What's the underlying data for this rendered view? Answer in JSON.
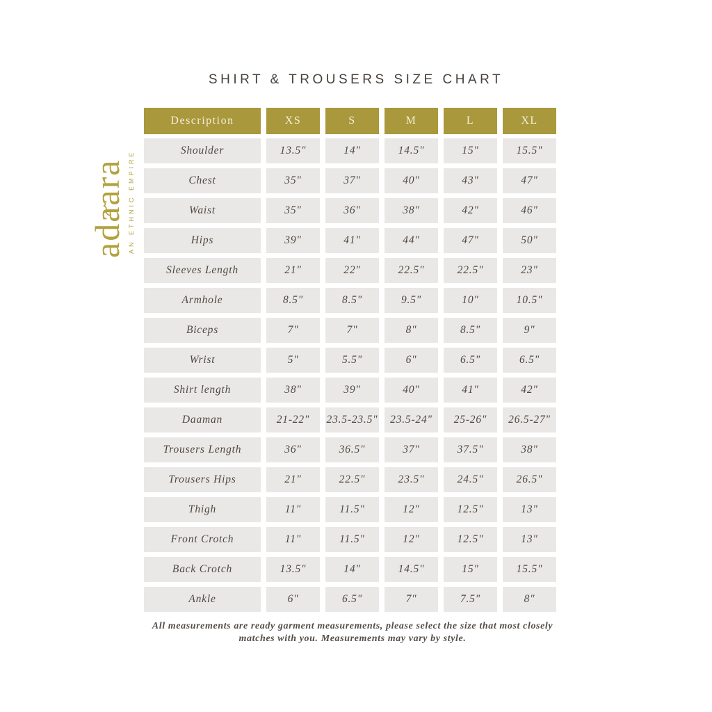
{
  "page": {
    "title": "SHIRT & TROUSERS SIZE CHART"
  },
  "logo": {
    "brand": "adaara",
    "tagline": "AN ETHNIC EMPIRE"
  },
  "table": {
    "columns": [
      "Description",
      "XS",
      "S",
      "M",
      "L",
      "XL"
    ],
    "rows": [
      {
        "label": "Shoulder",
        "values": [
          "13.5\"",
          "14\"",
          "14.5\"",
          "15\"",
          "15.5\""
        ]
      },
      {
        "label": "Chest",
        "values": [
          "35\"",
          "37\"",
          "40\"",
          "43\"",
          "47\""
        ]
      },
      {
        "label": "Waist",
        "values": [
          "35\"",
          "36\"",
          "38\"",
          "42\"",
          "46\""
        ]
      },
      {
        "label": "Hips",
        "values": [
          "39\"",
          "41\"",
          "44\"",
          "47\"",
          "50\""
        ]
      },
      {
        "label": "Sleeves Length",
        "values": [
          "21\"",
          "22\"",
          "22.5\"",
          "22.5\"",
          "23\""
        ]
      },
      {
        "label": "Armhole",
        "values": [
          "8.5\"",
          "8.5\"",
          "9.5\"",
          "10\"",
          "10.5\""
        ]
      },
      {
        "label": "Biceps",
        "values": [
          "7\"",
          "7\"",
          "8\"",
          "8.5\"",
          "9\""
        ]
      },
      {
        "label": "Wrist",
        "values": [
          "5\"",
          "5.5\"",
          "6\"",
          "6.5\"",
          "6.5\""
        ]
      },
      {
        "label": "Shirt length",
        "values": [
          "38\"",
          "39\"",
          "40\"",
          "41\"",
          "42\""
        ]
      },
      {
        "label": "Daaman",
        "values": [
          "21-22\"",
          "23.5-23.5\"",
          "23.5-24\"",
          "25-26\"",
          "26.5-27\""
        ]
      },
      {
        "label": "Trousers Length",
        "values": [
          "36\"",
          "36.5\"",
          "37\"",
          "37.5\"",
          "38\""
        ]
      },
      {
        "label": "Trousers Hips",
        "values": [
          "21\"",
          "22.5\"",
          "23.5\"",
          "24.5\"",
          "26.5\""
        ]
      },
      {
        "label": "Thigh",
        "values": [
          "11\"",
          "11.5\"",
          "12\"",
          "12.5\"",
          "13\""
        ]
      },
      {
        "label": "Front Crotch",
        "values": [
          "11\"",
          "11.5\"",
          "12\"",
          "12.5\"",
          "13\""
        ]
      },
      {
        "label": "Back Crotch",
        "values": [
          "13.5\"",
          "14\"",
          "14.5\"",
          "15\"",
          "15.5\""
        ]
      },
      {
        "label": "Ankle",
        "values": [
          "6\"",
          "6.5\"",
          "7\"",
          "7.5\"",
          "8\""
        ]
      }
    ]
  },
  "footer": {
    "note": "All measurements are ready garment measurements, please select the size that most closely matches with you. Measurements may vary by style."
  },
  "colors": {
    "gold": "#a9983c",
    "cell_bg": "#e9e8e6",
    "body_text": "#4e4740",
    "header_text": "#f4eed8",
    "logo_gold": "#b2a23c"
  }
}
